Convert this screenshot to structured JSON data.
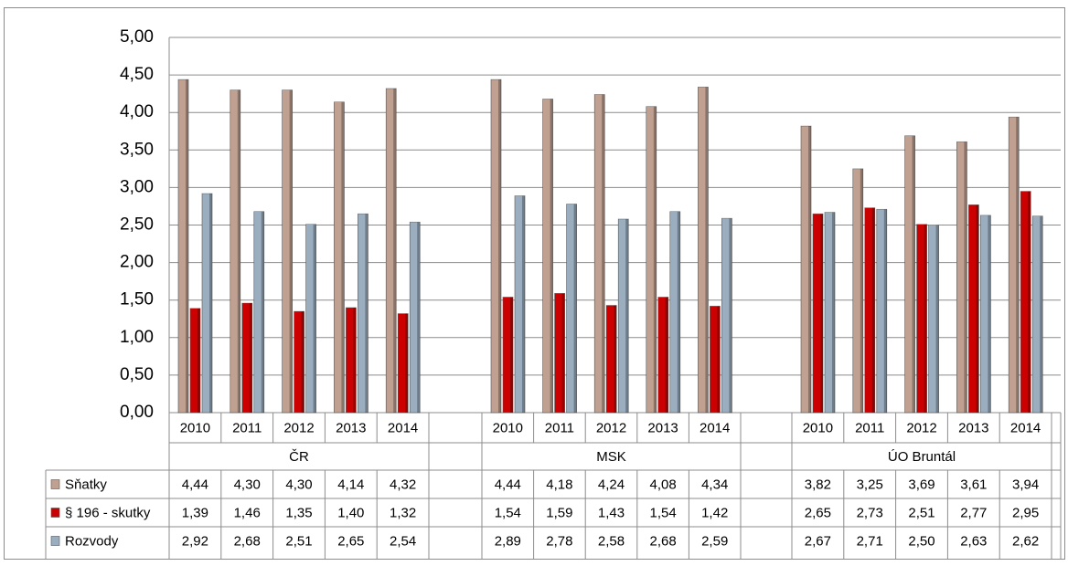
{
  "chart_data": {
    "type": "bar",
    "ylim": [
      0,
      5
    ],
    "yticks": [
      "0,00",
      "0,50",
      "1,00",
      "1,50",
      "2,00",
      "2,50",
      "3,00",
      "3,50",
      "4,00",
      "4,50",
      "5,00"
    ],
    "grid": true,
    "groups": [
      {
        "name": "ČR",
        "categories": [
          "2010",
          "2011",
          "2012",
          "2013",
          "2014"
        ]
      },
      {
        "name": "MSK",
        "categories": [
          "2010",
          "2011",
          "2012",
          "2013",
          "2014"
        ]
      },
      {
        "name": "ÚO Bruntál",
        "categories": [
          "2010",
          "2011",
          "2012",
          "2013",
          "2014"
        ]
      }
    ],
    "series": [
      {
        "name": "Sňatky",
        "color": "#c0a090",
        "values": [
          [
            4.44,
            4.3,
            4.3,
            4.14,
            4.32
          ],
          [
            4.44,
            4.18,
            4.24,
            4.08,
            4.34
          ],
          [
            3.82,
            3.25,
            3.69,
            3.61,
            3.94
          ]
        ],
        "labels": [
          [
            "4,44",
            "4,30",
            "4,30",
            "4,14",
            "4,32"
          ],
          [
            "4,44",
            "4,18",
            "4,24",
            "4,08",
            "4,34"
          ],
          [
            "3,82",
            "3,25",
            "3,69",
            "3,61",
            "3,94"
          ]
        ]
      },
      {
        "name": "§ 196 - skutky",
        "color": "#cc0000",
        "values": [
          [
            1.39,
            1.46,
            1.35,
            1.4,
            1.32
          ],
          [
            1.54,
            1.59,
            1.43,
            1.54,
            1.42
          ],
          [
            2.65,
            2.73,
            2.51,
            2.77,
            2.95
          ]
        ],
        "labels": [
          [
            "1,39",
            "1,46",
            "1,35",
            "1,40",
            "1,32"
          ],
          [
            "1,54",
            "1,59",
            "1,43",
            "1,54",
            "1,42"
          ],
          [
            "2,65",
            "2,73",
            "2,51",
            "2,77",
            "2,95"
          ]
        ]
      },
      {
        "name": "Rozvody",
        "color": "#9aaec0",
        "values": [
          [
            2.92,
            2.68,
            2.51,
            2.65,
            2.54
          ],
          [
            2.89,
            2.78,
            2.58,
            2.68,
            2.59
          ],
          [
            2.67,
            2.71,
            2.5,
            2.63,
            2.62
          ]
        ],
        "labels": [
          [
            "2,92",
            "2,68",
            "2,51",
            "2,65",
            "2,54"
          ],
          [
            "2,89",
            "2,78",
            "2,58",
            "2,68",
            "2,59"
          ],
          [
            "2,67",
            "2,71",
            "2,50",
            "2,63",
            "2,62"
          ]
        ]
      }
    ]
  }
}
